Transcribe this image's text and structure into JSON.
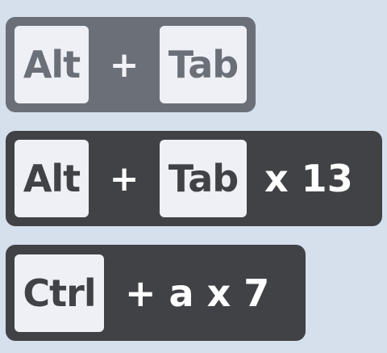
{
  "combos": [
    {
      "key1": "Alt",
      "plus": "+",
      "key2": "Tab",
      "suffix": ""
    },
    {
      "key1": "Alt",
      "plus": "+",
      "key2": "Tab",
      "suffix": "x 13"
    },
    {
      "key1": "Ctrl",
      "suffix": "+ a x 7"
    }
  ],
  "colors": {
    "background": "#d6dfec",
    "inactive_panel": "#6b6f78",
    "active_panel": "#414246",
    "keycap": "#eef0f6",
    "text_light": "#ffffff"
  }
}
